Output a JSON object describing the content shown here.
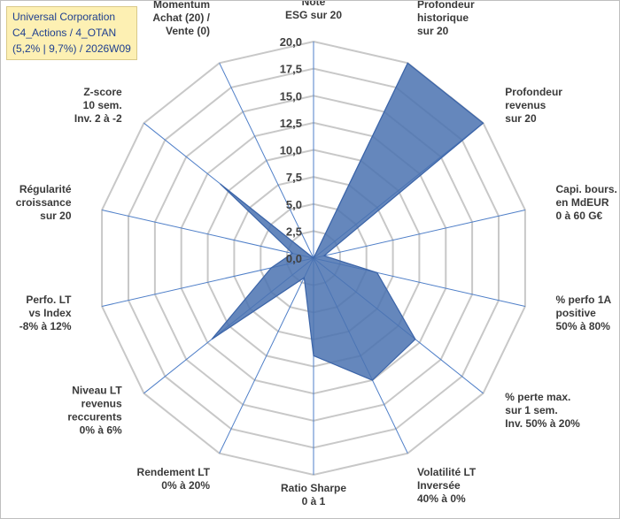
{
  "title_lines": [
    "Universal Corporation",
    "C4_Actions / 4_OTAN",
    "(5,2% | 9,7%) / 2026W09"
  ],
  "colors": {
    "fill": "#4a72b0",
    "stroke": "#3b64a8",
    "grid": "#c8c8c8",
    "spoke": "#4f7fc8",
    "title_bg": "#fdf0b3",
    "title_text": "#1f3f8f"
  },
  "chart_data": {
    "type": "radar",
    "rmin": 0,
    "rmax": 20,
    "ticks": [
      "0,0",
      "2,5",
      "5,0",
      "7,5",
      "10,0",
      "12,5",
      "15,0",
      "17,5",
      "20,0"
    ],
    "axes": [
      {
        "lines": [
          "Note",
          "ESG sur 20"
        ]
      },
      {
        "lines": [
          "Profondeur",
          "historique",
          "sur 20"
        ]
      },
      {
        "lines": [
          "Profondeur",
          "revenus",
          "sur 20"
        ]
      },
      {
        "lines": [
          "Capi. bours.",
          "en MdEUR",
          "0 à 60 G€"
        ]
      },
      {
        "lines": [
          "% perfo 1A",
          "positive",
          "50% à 80%"
        ]
      },
      {
        "lines": [
          "% perte max.",
          "sur 1 sem.",
          "Inv. 50% à 20%"
        ]
      },
      {
        "lines": [
          "Volatilité LT",
          "Inversée",
          "40% à 0%"
        ]
      },
      {
        "lines": [
          "Ratio Sharpe",
          "0 à 1"
        ]
      },
      {
        "lines": [
          "Rendement LT",
          "0% à 20%"
        ]
      },
      {
        "lines": [
          "Niveau LT",
          "revenus",
          "reccurents",
          "0% à 6%"
        ]
      },
      {
        "lines": [
          "Perfo. LT",
          "vs Index",
          "-8% à 12%"
        ]
      },
      {
        "lines": [
          "Régularité",
          "croissance",
          "sur 20"
        ]
      },
      {
        "lines": [
          "Z-score",
          "10 sem.",
          "Inv. 2 à -2"
        ]
      },
      {
        "lines": [
          "Momentum",
          "Achat (20) /",
          "Vente (0)"
        ]
      }
    ],
    "values": [
      0,
      20,
      20,
      1,
      6,
      12,
      12.5,
      9,
      2,
      12,
      4,
      2,
      11,
      0
    ]
  }
}
